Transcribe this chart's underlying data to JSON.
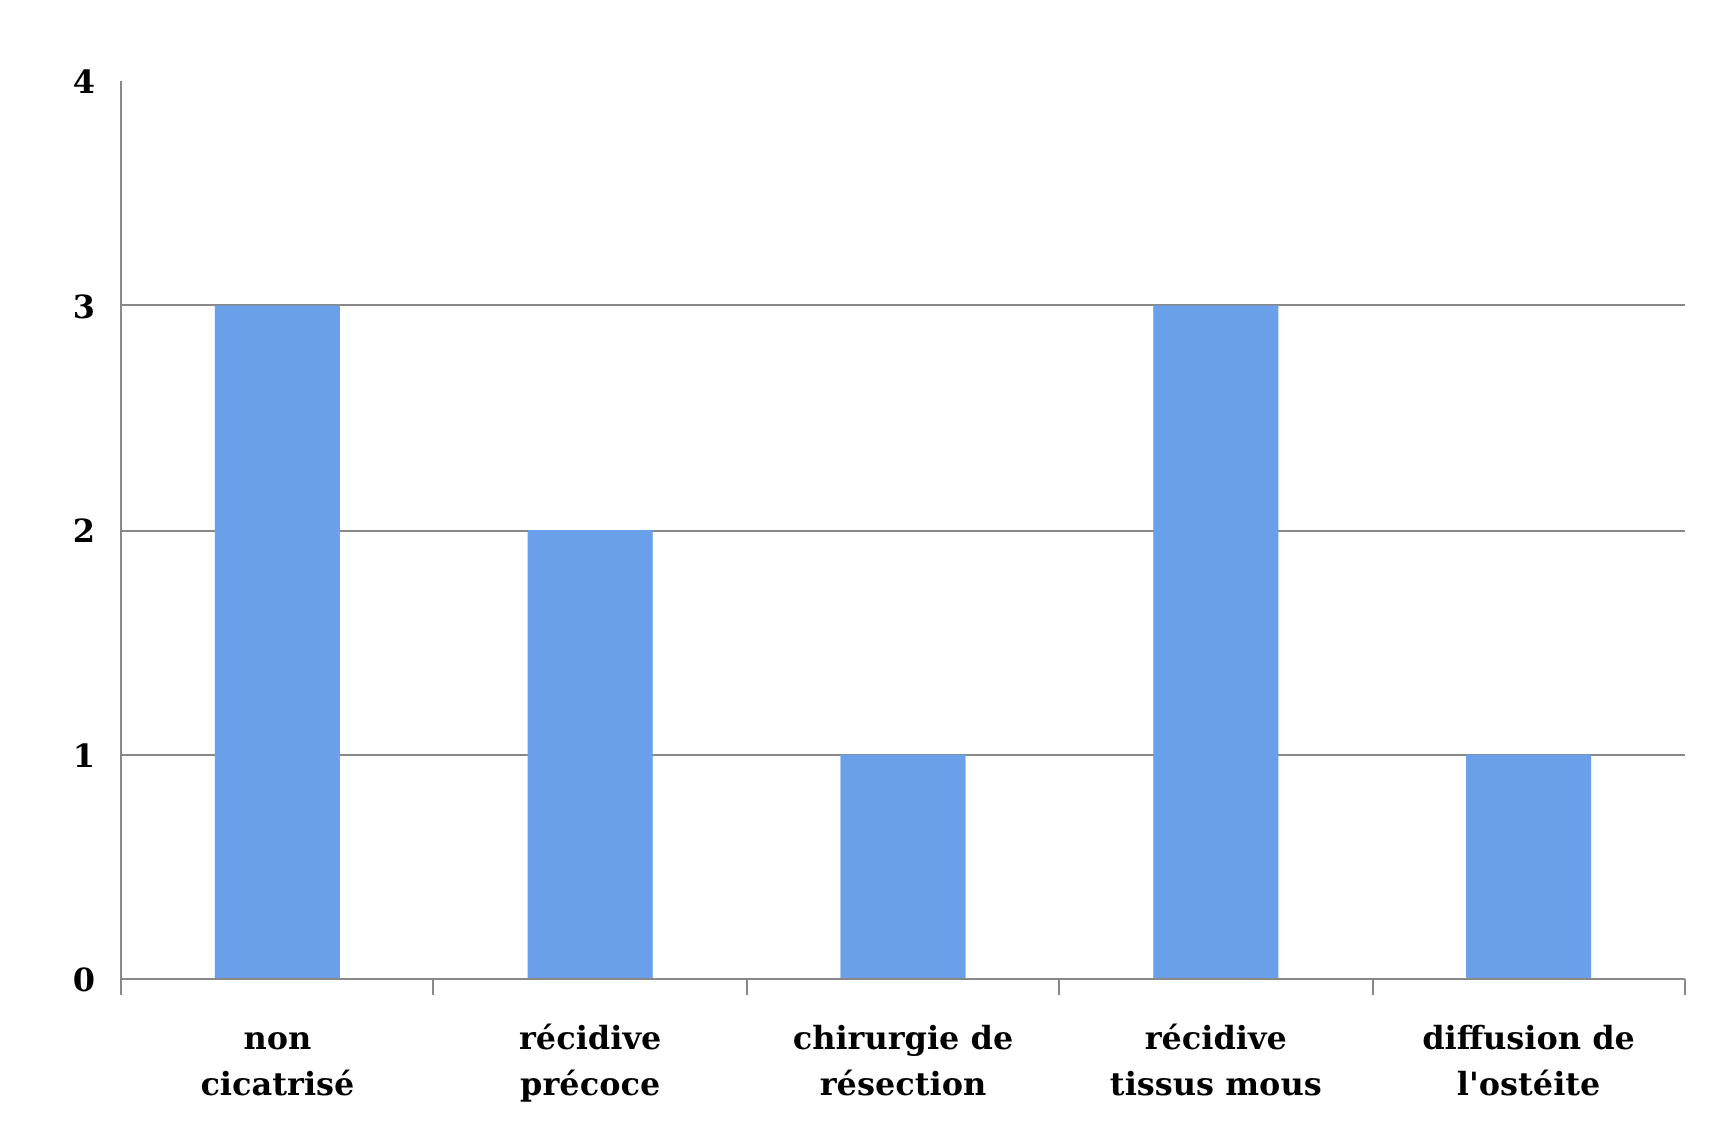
{
  "chart_data": {
    "type": "bar",
    "categories": [
      "non cicatrisé",
      "récidive précoce",
      "chirurgie de résection",
      "récidive tissus mous",
      "diffusion de l'ostéite"
    ],
    "values": [
      3,
      2,
      1,
      3,
      1
    ],
    "color": "#6aa0ea",
    "ylim": [
      0,
      4
    ],
    "yticks": [
      0,
      1,
      2,
      3,
      4
    ],
    "grid": "y"
  }
}
